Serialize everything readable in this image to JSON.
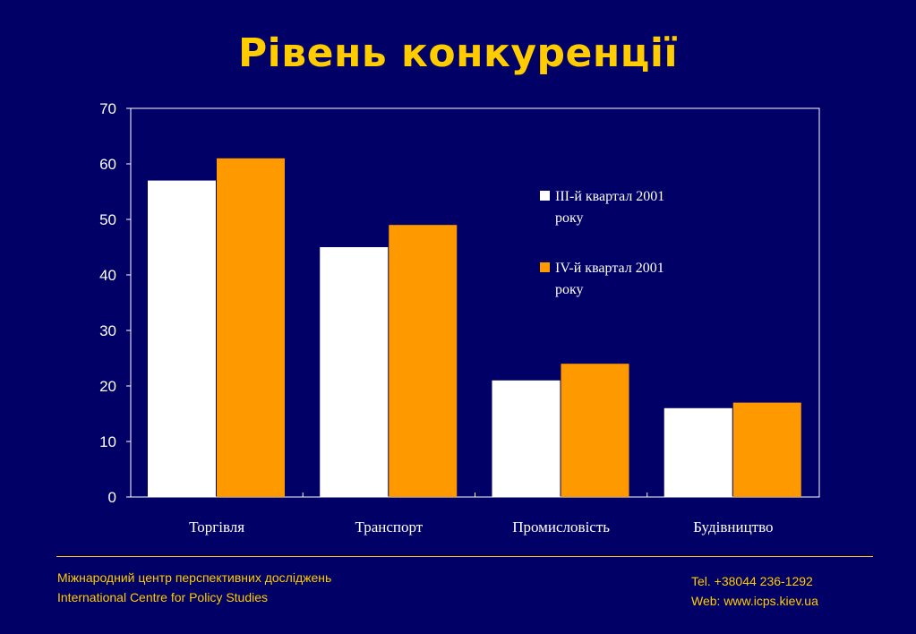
{
  "title": "Рівень конкуренції",
  "chart_data": {
    "type": "bar",
    "categories": [
      "Торгівля",
      "Транспорт",
      "Промисловість",
      "Будівництво"
    ],
    "series": [
      {
        "name": "ІІІ-й квартал 2001 року",
        "values": [
          57,
          45,
          21,
          16
        ],
        "color": "#ffffff"
      },
      {
        "name": "ІV-й квартал 2001 року",
        "values": [
          61,
          49,
          24,
          17
        ],
        "color": "#ff9900"
      }
    ],
    "ylim": [
      0,
      70
    ],
    "yticks": [
      0,
      10,
      20,
      30,
      40,
      50,
      60,
      70
    ],
    "legend_position": "right",
    "grid": false
  },
  "legend": {
    "item1_line1": "ІІІ-й квартал 2001",
    "item1_line2": "року",
    "item2_line1": "ІV-й квартал 2001",
    "item2_line2": "року"
  },
  "footer": {
    "org_ua": "Міжнародний центр перспективних досліджень",
    "org_en": "International Centre for Policy Studies",
    "tel": "Tel. +38044 236-1292",
    "web": "Web: www.icps.kiev.ua"
  },
  "colors": {
    "background": "#000066",
    "accent": "#ffcc00",
    "series1": "#ffffff",
    "series2": "#ff9900"
  }
}
